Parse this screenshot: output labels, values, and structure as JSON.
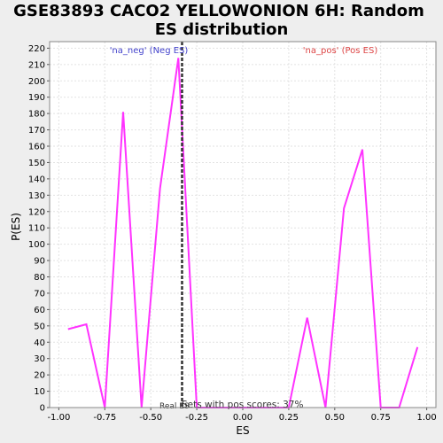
{
  "chart_data": {
    "type": "line",
    "title_line1": "GSE83893 CACO2 YELLOWONION 6H: Random",
    "title_line2": "ES distribution",
    "xlabel": "ES",
    "ylabel": "P(ES)",
    "xlim": [
      -1.05,
      1.05
    ],
    "ylim": [
      0,
      224
    ],
    "x_ticks": [
      -1.0,
      -0.75,
      -0.5,
      -0.25,
      0.0,
      0.25,
      0.5,
      0.75,
      1.0
    ],
    "x_tick_labels": [
      "-1.00",
      "-0.75",
      "-0.50",
      "-0.25",
      "0.00",
      "0.25",
      "0.50",
      "0.75",
      "1.00"
    ],
    "y_ticks": [
      0,
      10,
      20,
      30,
      40,
      50,
      60,
      70,
      80,
      90,
      100,
      110,
      120,
      130,
      140,
      150,
      160,
      170,
      180,
      190,
      200,
      210,
      220
    ],
    "y_tick_labels": [
      "0",
      "10",
      "20",
      "30",
      "40",
      "50",
      "60",
      "70",
      "80",
      "90",
      "100",
      "110",
      "120",
      "130",
      "140",
      "150",
      "160",
      "170",
      "180",
      "190",
      "200",
      "210",
      "220"
    ],
    "grid": true,
    "series": [
      {
        "name": "P(ES)",
        "color": "#ff33ff",
        "x": [
          -0.95,
          -0.85,
          -0.75,
          -0.65,
          -0.55,
          -0.45,
          -0.35,
          -0.25,
          -0.15,
          -0.05,
          0.05,
          0.15,
          0.25,
          0.35,
          0.45,
          0.55,
          0.65,
          0.75,
          0.85,
          0.95
        ],
        "y": [
          48,
          51,
          0,
          181,
          0,
          134,
          214,
          0,
          0,
          0,
          0,
          0,
          0,
          55,
          0,
          122,
          158,
          0,
          0,
          37
        ]
      }
    ],
    "real_es": -0.33,
    "real_es_label": "Real ES",
    "neg_label": "'na_neg' (Neg ES)",
    "pos_label": "'na_pos' (Pos ES)",
    "sets_label": "Sets with pos scores: 37%"
  },
  "colors": {
    "background": "#eeeeee",
    "plot_bg": "#ffffff",
    "line": "#ff33ff",
    "neg_label": "#4444cc",
    "pos_label": "#dd4444",
    "real_es_line": "#333333"
  }
}
